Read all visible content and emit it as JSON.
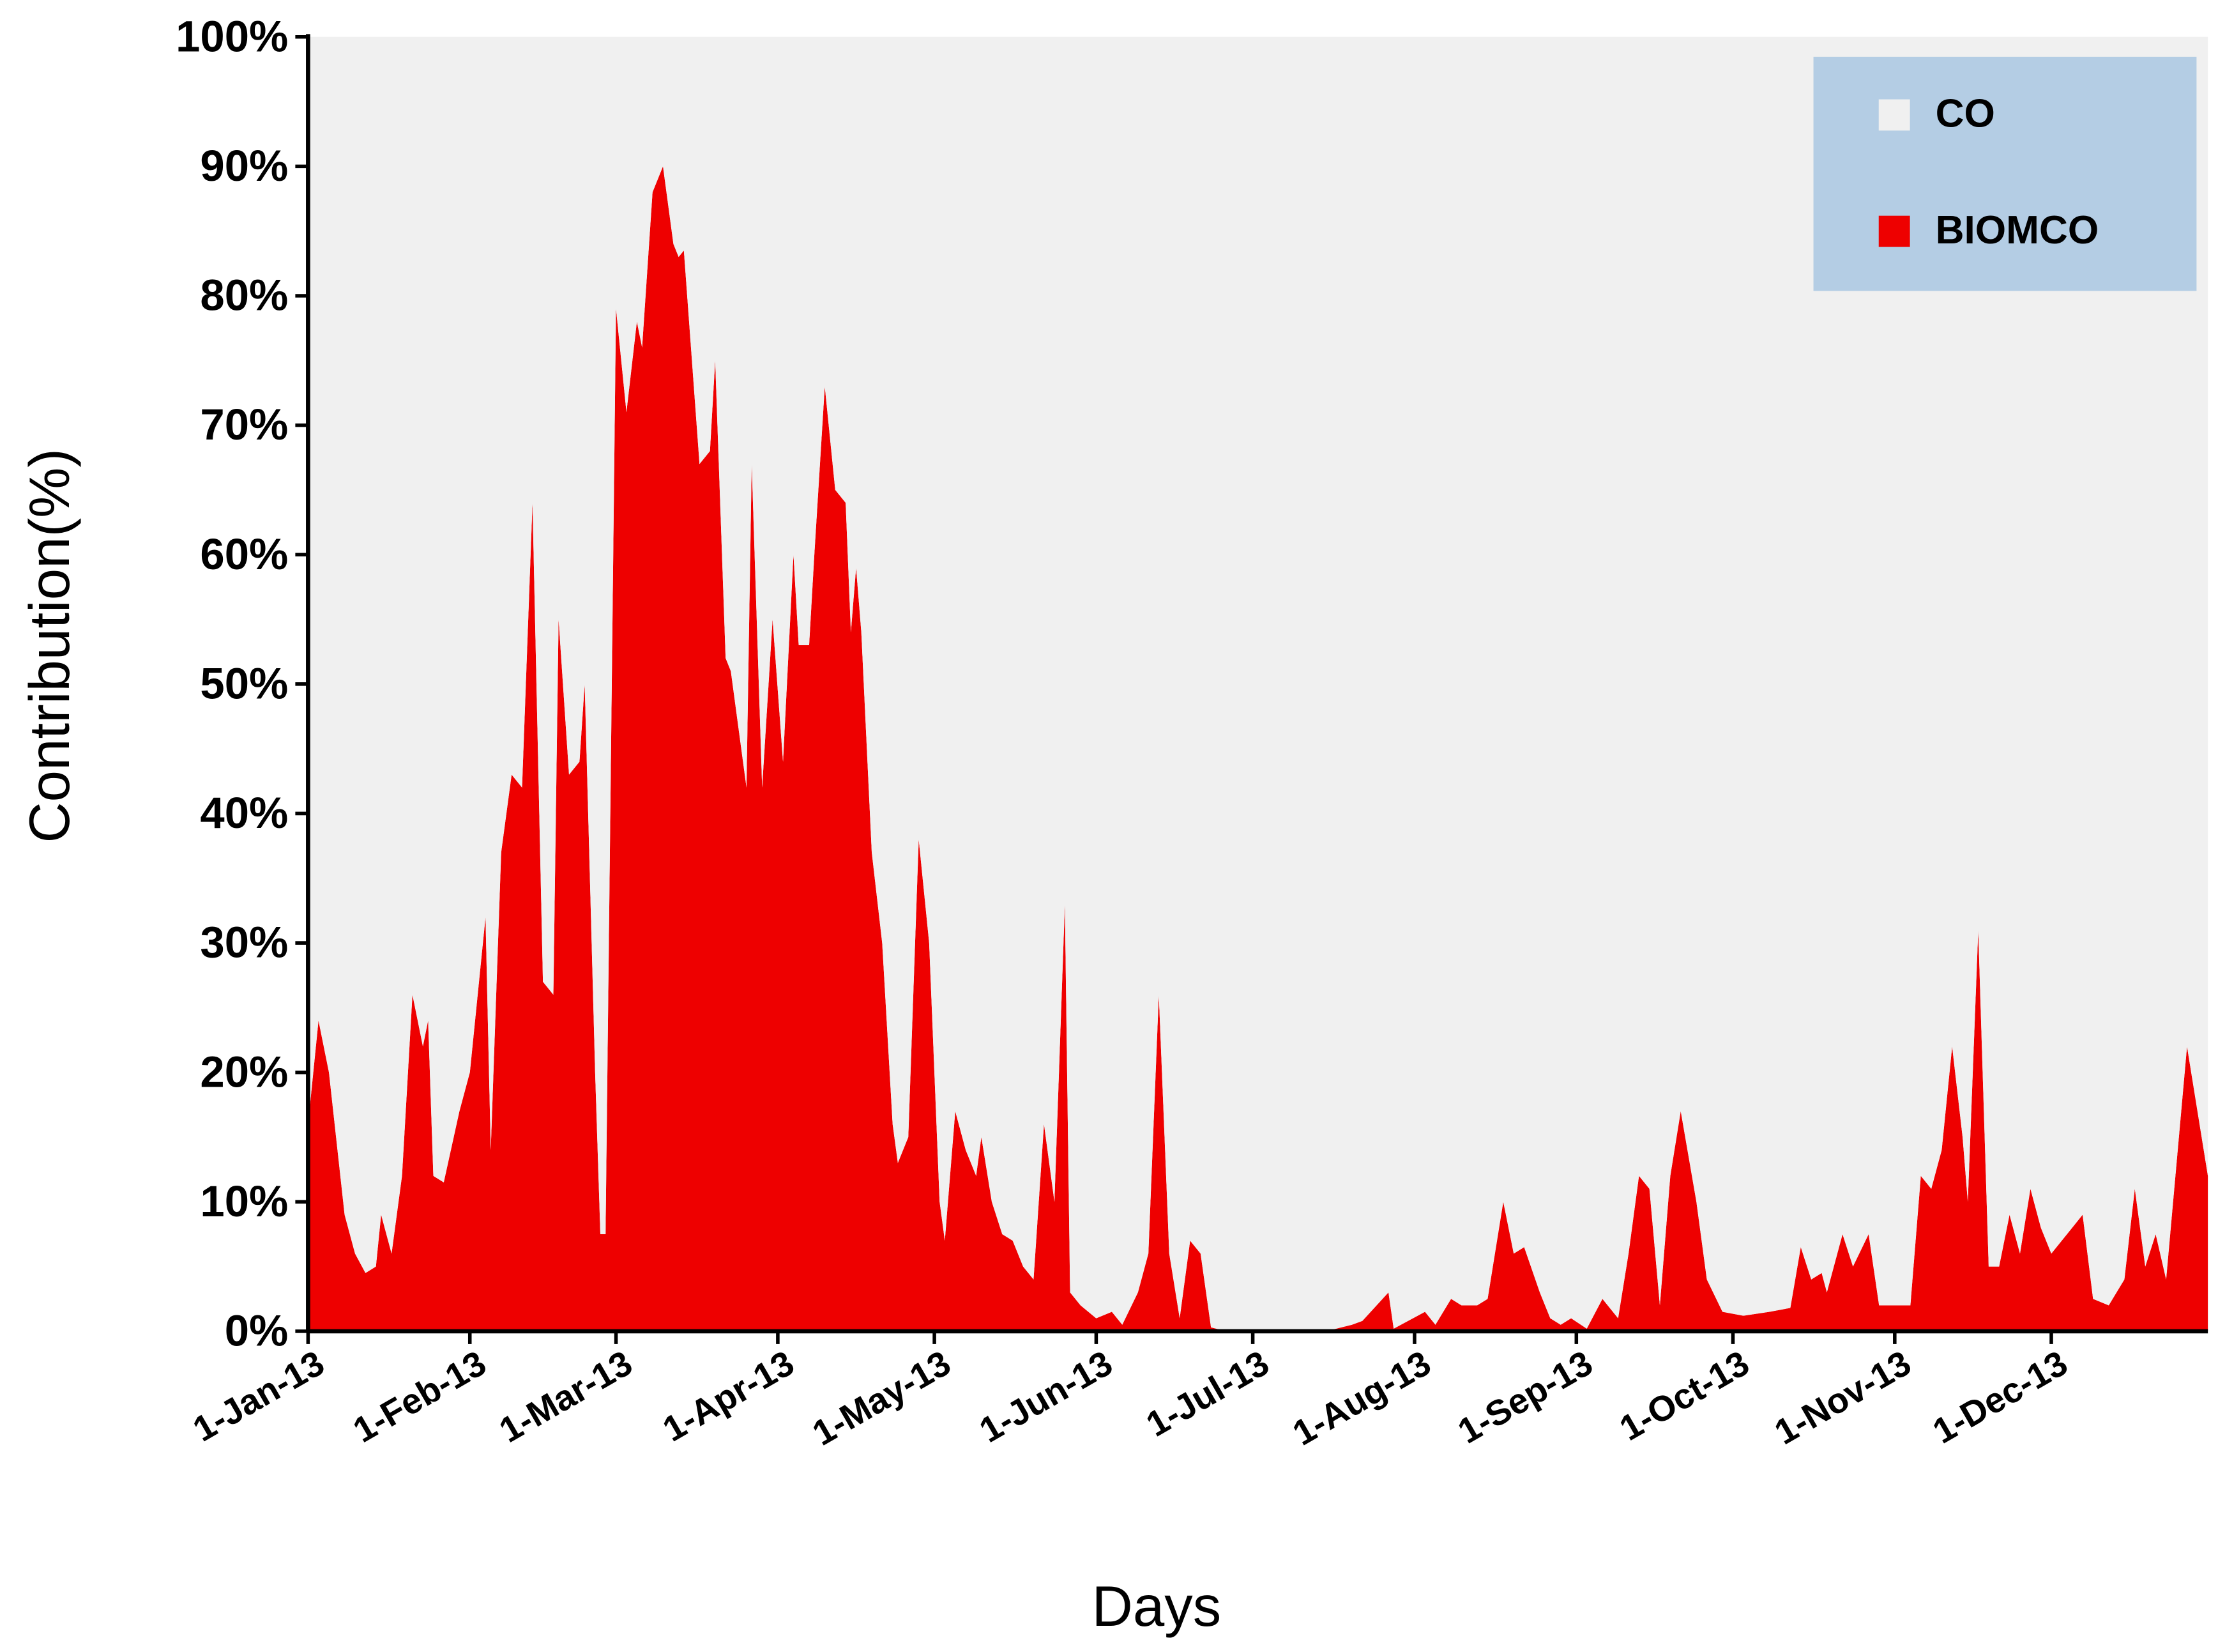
{
  "chart_data": {
    "type": "stacked_area",
    "x_label": "Days",
    "y_label": "Contribution(%)",
    "x": [
      "2013-01-01",
      "2013-01-03",
      "2013-01-05",
      "2013-01-08",
      "2013-01-10",
      "2013-01-12",
      "2013-01-14",
      "2013-01-15",
      "2013-01-17",
      "2013-01-19",
      "2013-01-21",
      "2013-01-23",
      "2013-01-24",
      "2013-01-25",
      "2013-01-27",
      "2013-01-30",
      "2013-02-01",
      "2013-02-03",
      "2013-02-04",
      "2013-02-05",
      "2013-02-07",
      "2013-02-09",
      "2013-02-11",
      "2013-02-13",
      "2013-02-15",
      "2013-02-17",
      "2013-02-18",
      "2013-02-20",
      "2013-02-22",
      "2013-02-23",
      "2013-02-25",
      "2013-02-26",
      "2013-02-27",
      "2013-03-01",
      "2013-03-03",
      "2013-03-05",
      "2013-03-06",
      "2013-03-08",
      "2013-03-10",
      "2013-03-12",
      "2013-03-13",
      "2013-03-14",
      "2013-03-17",
      "2013-03-19",
      "2013-03-20",
      "2013-03-22",
      "2013-03-23",
      "2013-03-26",
      "2013-03-27",
      "2013-03-29",
      "2013-03-31",
      "2013-04-02",
      "2013-04-04",
      "2013-04-05",
      "2013-04-07",
      "2013-04-08",
      "2013-04-10",
      "2013-04-12",
      "2013-04-14",
      "2013-04-15",
      "2013-04-16",
      "2013-04-17",
      "2013-04-19",
      "2013-04-21",
      "2013-04-23",
      "2013-04-24",
      "2013-04-26",
      "2013-04-28",
      "2013-04-30",
      "2013-05-02",
      "2013-05-03",
      "2013-05-05",
      "2013-05-07",
      "2013-05-09",
      "2013-05-10",
      "2013-05-12",
      "2013-05-14",
      "2013-05-16",
      "2013-05-18",
      "2013-05-20",
      "2013-05-22",
      "2013-05-24",
      "2013-05-26",
      "2013-05-27",
      "2013-05-29",
      "2013-06-01",
      "2013-06-04",
      "2013-06-06",
      "2013-06-09",
      "2013-06-11",
      "2013-06-13",
      "2013-06-15",
      "2013-06-17",
      "2013-06-19",
      "2013-06-21",
      "2013-06-23",
      "2013-06-26",
      "2013-07-15",
      "2013-07-20",
      "2013-07-22",
      "2013-07-27",
      "2013-07-28",
      "2013-08-03",
      "2013-08-05",
      "2013-08-08",
      "2013-08-10",
      "2013-08-13",
      "2013-08-15",
      "2013-08-18",
      "2013-08-20",
      "2013-08-22",
      "2013-08-25",
      "2013-08-27",
      "2013-08-29",
      "2013-08-31",
      "2013-09-03",
      "2013-09-06",
      "2013-09-09",
      "2013-09-11",
      "2013-09-13",
      "2013-09-15",
      "2013-09-17",
      "2013-09-19",
      "2013-09-21",
      "2013-09-24",
      "2013-09-26",
      "2013-09-29",
      "2013-10-03",
      "2013-10-08",
      "2013-10-12",
      "2013-10-14",
      "2013-10-16",
      "2013-10-18",
      "2013-10-19",
      "2013-10-22",
      "2013-10-24",
      "2013-10-27",
      "2013-10-29",
      "2013-11-01",
      "2013-11-04",
      "2013-11-06",
      "2013-11-08",
      "2013-11-10",
      "2013-11-12",
      "2013-11-14",
      "2013-11-15",
      "2013-11-17",
      "2013-11-19",
      "2013-11-21",
      "2013-11-23",
      "2013-11-25",
      "2013-11-27",
      "2013-11-29",
      "2013-12-01",
      "2013-12-03",
      "2013-12-05",
      "2013-12-07",
      "2013-12-09",
      "2013-12-12",
      "2013-12-15",
      "2013-12-17",
      "2013-12-19",
      "2013-12-21",
      "2013-12-23",
      "2013-12-27",
      "2013-12-31"
    ],
    "series": [
      {
        "name": "BIOMCO",
        "color": "#ee0000",
        "values": [
          16,
          24,
          20,
          9,
          6,
          4.5,
          5,
          9,
          6,
          12,
          26,
          22,
          24,
          12,
          11.5,
          17,
          20,
          28,
          32,
          14,
          37,
          43,
          42,
          64,
          27,
          26,
          55,
          43,
          44,
          50,
          20,
          7.5,
          7.5,
          79,
          71,
          78,
          76,
          88,
          90,
          84,
          83,
          83.5,
          67,
          68,
          75,
          52,
          51,
          42,
          67,
          42,
          55,
          44,
          60,
          53,
          53,
          60,
          73,
          65,
          64,
          54,
          59,
          54,
          37,
          30,
          16,
          13,
          15,
          38,
          30,
          10,
          7,
          17,
          14,
          12,
          15,
          10,
          7.5,
          7,
          5,
          4,
          16,
          10,
          33,
          3,
          2,
          1,
          1.5,
          0.5,
          3,
          6,
          26,
          6,
          1,
          7,
          6,
          0.3,
          0,
          0,
          0.5,
          0.8,
          3,
          0.2,
          1.5,
          0.5,
          2.5,
          2,
          2,
          2.5,
          10,
          6,
          6.5,
          3,
          1,
          0.5,
          1,
          0.2,
          2.5,
          1,
          6,
          12,
          11,
          2,
          12,
          17,
          10,
          4,
          1.5,
          1.2,
          1.5,
          1.8,
          6.5,
          4,
          4.5,
          3,
          7.5,
          5,
          7.5,
          2,
          2,
          2,
          12,
          11,
          14,
          22,
          15,
          10,
          31,
          5,
          5,
          9,
          6,
          11,
          8,
          6,
          7,
          8,
          9,
          2.5,
          2,
          4,
          11,
          5,
          7.5,
          4,
          22,
          12
        ]
      },
      {
        "name": "CO",
        "color": "#f0f0f0",
        "values": [
          84,
          76,
          80,
          91,
          94,
          95.5,
          95,
          91,
          94,
          88,
          74,
          78,
          76,
          88,
          88.5,
          83,
          80,
          72,
          68,
          86,
          63,
          57,
          58,
          36,
          73,
          74,
          45,
          57,
          56,
          50,
          80,
          92.5,
          92.5,
          21,
          29,
          22,
          24,
          12,
          10,
          16,
          17,
          16.5,
          33,
          32,
          25,
          48,
          49,
          58,
          33,
          58,
          45,
          56,
          40,
          47,
          47,
          40,
          27,
          35,
          36,
          46,
          41,
          46,
          63,
          70,
          84,
          87,
          85,
          62,
          70,
          90,
          93,
          83,
          86,
          88,
          85,
          90,
          92.5,
          93,
          95,
          96,
          84,
          90,
          67,
          97,
          98,
          99,
          98.5,
          99.5,
          97,
          94,
          74,
          94,
          99,
          93,
          94,
          99.7,
          100,
          100,
          99.5,
          99.2,
          97,
          99.8,
          98.5,
          99.5,
          97.5,
          98,
          98,
          97.5,
          90,
          94,
          93.5,
          97,
          99,
          99.5,
          99,
          99.8,
          97.5,
          99,
          94,
          88,
          89,
          98,
          88,
          83,
          90,
          96,
          98.5,
          98.8,
          98.5,
          98.2,
          93.5,
          96,
          95.5,
          97,
          92.5,
          95,
          92.5,
          98,
          98,
          98,
          88,
          89,
          86,
          78,
          85,
          90,
          69,
          95,
          95,
          91,
          94,
          89,
          92,
          94,
          93,
          92,
          91,
          97.5,
          98,
          96,
          89,
          95,
          92.5,
          96,
          78,
          88
        ]
      }
    ],
    "xlim": [
      "2013-01-01",
      "2013-12-31"
    ],
    "xticks": [
      {
        "value": "2013-01-01",
        "label": "1-Jan-13"
      },
      {
        "value": "2013-02-01",
        "label": "1-Feb-13"
      },
      {
        "value": "2013-03-01",
        "label": "1-Mar-13"
      },
      {
        "value": "2013-04-01",
        "label": "1-Apr-13"
      },
      {
        "value": "2013-05-01",
        "label": "1-May-13"
      },
      {
        "value": "2013-06-01",
        "label": "1-Jun-13"
      },
      {
        "value": "2013-07-01",
        "label": "1-Jul-13"
      },
      {
        "value": "2013-08-01",
        "label": "1-Aug-13"
      },
      {
        "value": "2013-09-01",
        "label": "1-Sep-13"
      },
      {
        "value": "2013-10-01",
        "label": "1-Oct-13"
      },
      {
        "value": "2013-11-01",
        "label": "1-Nov-13"
      },
      {
        "value": "2013-12-01",
        "label": "1-Dec-13"
      }
    ],
    "ylim": [
      0,
      100
    ],
    "yticks": [
      {
        "value": 0,
        "label": "0%"
      },
      {
        "value": 10,
        "label": "10%"
      },
      {
        "value": 20,
        "label": "20%"
      },
      {
        "value": 30,
        "label": "30%"
      },
      {
        "value": 40,
        "label": "40%"
      },
      {
        "value": 50,
        "label": "50%"
      },
      {
        "value": 60,
        "label": "60%"
      },
      {
        "value": 70,
        "label": "70%"
      },
      {
        "value": 80,
        "label": "80%"
      },
      {
        "value": 90,
        "label": "90%"
      },
      {
        "value": 100,
        "label": "100%"
      }
    ],
    "legend_position": "upper right"
  }
}
